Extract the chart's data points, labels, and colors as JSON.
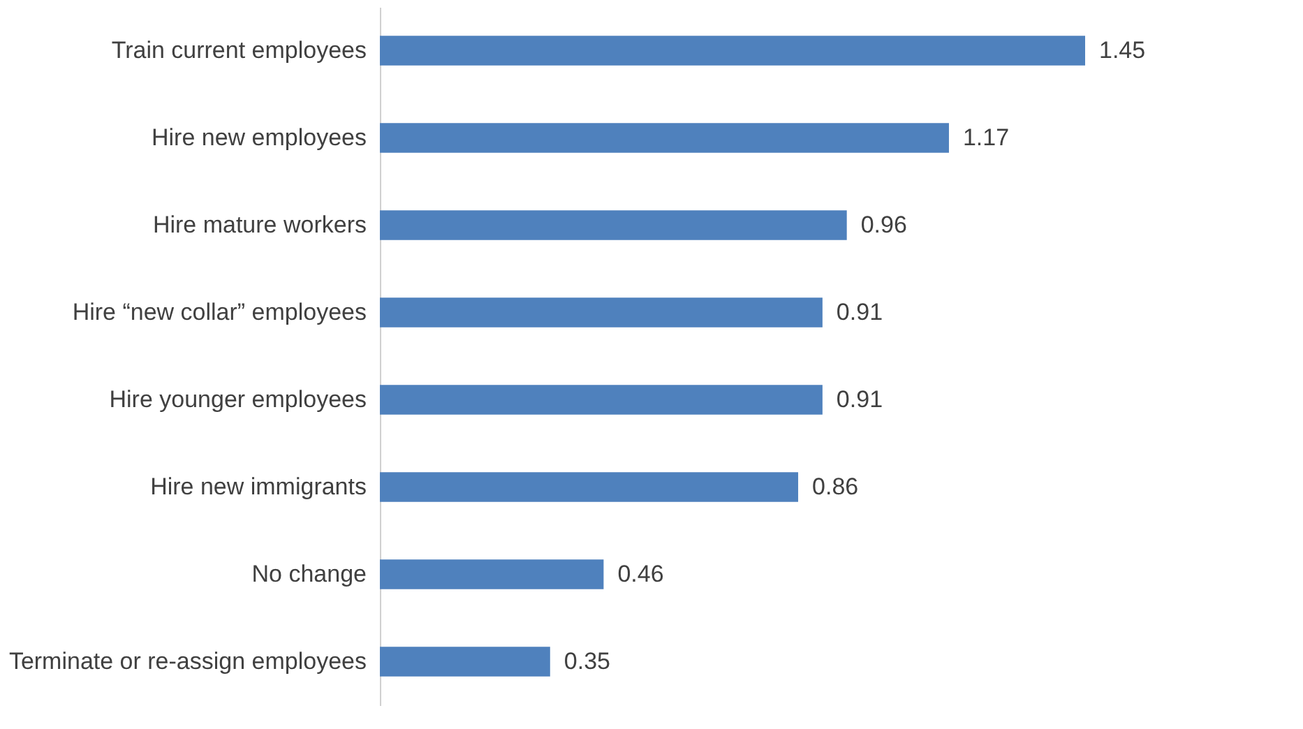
{
  "chart_data": {
    "type": "bar",
    "orientation": "horizontal",
    "categories": [
      "Train current employees",
      "Hire new employees",
      "Hire mature workers",
      "Hire “new collar” employees",
      "Hire younger employees",
      "Hire new immigrants",
      "No change",
      "Terminate or re-assign employees"
    ],
    "values": [
      1.45,
      1.17,
      0.96,
      0.91,
      0.91,
      0.86,
      0.46,
      0.35
    ],
    "color": "#4f81bd",
    "data_labels": true
  }
}
